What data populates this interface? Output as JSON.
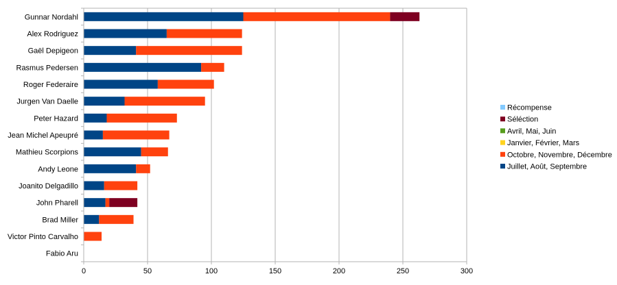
{
  "chart_data": {
    "type": "bar",
    "orientation": "horizontal",
    "stacked": true,
    "categories": [
      "Gunnar Nordahl",
      "Alex Rodriguez",
      "Gaël Depigeon",
      "Rasmus Pedersen",
      "Roger Federaire",
      "Jurgen Van Daelle",
      "Peter Hazard",
      "Jean Michel Apeupré",
      "Mathieu Scorpions",
      "Andy Leone",
      "Joanito Delgadillo",
      "John Pharell",
      "Brad Miller",
      "Victor Pinto Carvalho",
      "Fabio Aru"
    ],
    "series": [
      {
        "name": "Juillet, Août, Septembre",
        "color": "#004586",
        "values": [
          125,
          65,
          41,
          92,
          58,
          32,
          18,
          15,
          45,
          41,
          16,
          17,
          12,
          0,
          0
        ]
      },
      {
        "name": "Octobre, Novembre, Décembre",
        "color": "#ff420e",
        "values": [
          115,
          59,
          83,
          18,
          44,
          63,
          55,
          52,
          21,
          11,
          26,
          3,
          27,
          14,
          0
        ]
      },
      {
        "name": "Janvier, Février, Mars",
        "color": "#ffd320",
        "values": [
          0,
          0,
          0,
          0,
          0,
          0,
          0,
          0,
          0,
          0,
          0,
          0,
          0,
          0,
          0
        ]
      },
      {
        "name": "Avril, Mai, Juin",
        "color": "#579d1c",
        "values": [
          0,
          0,
          0,
          0,
          0,
          0,
          0,
          0,
          0,
          0,
          0,
          0,
          0,
          0,
          0
        ]
      },
      {
        "name": "Séléction",
        "color": "#7e0021",
        "values": [
          23,
          0,
          0,
          0,
          0,
          0,
          0,
          0,
          0,
          0,
          0,
          22,
          0,
          0,
          0
        ]
      },
      {
        "name": "Récompense",
        "color": "#83caff",
        "values": [
          0,
          0,
          0,
          0,
          0,
          0,
          0,
          0,
          0,
          0,
          0,
          0,
          0,
          0,
          0
        ]
      }
    ],
    "legend_order": [
      "Récompense",
      "Séléction",
      "Avril, Mai, Juin",
      "Janvier, Février, Mars",
      "Octobre, Novembre, Décembre",
      "Juillet, Août, Septembre"
    ],
    "xlim": [
      0,
      300
    ],
    "xticks": [
      0,
      50,
      100,
      150,
      200,
      250,
      300
    ],
    "grid": true,
    "legend_position": "right",
    "title": "",
    "xlabel": "",
    "ylabel": ""
  }
}
